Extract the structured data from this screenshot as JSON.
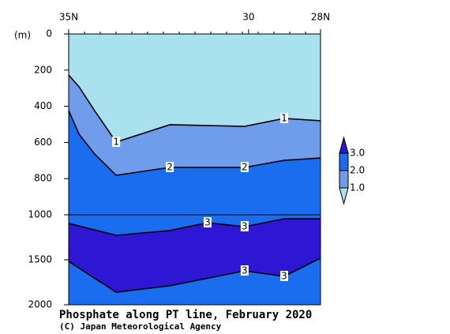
{
  "chart_data": {
    "type": "contour",
    "title": "Phosphate along PT line, February 2020",
    "credit": "(C) Japan Meteorological Agency",
    "ylabel": "(m)",
    "xlim": [
      35,
      28
    ],
    "xticks": [
      {
        "value": 35,
        "label": "35N"
      },
      30,
      {
        "value": 28,
        "label": "28N"
      }
    ],
    "ylim": [
      0,
      2000
    ],
    "scale_break": 1000,
    "yticks": [
      0,
      200,
      400,
      600,
      800,
      1000,
      1500,
      2000
    ],
    "colors": [
      "#a9e1ee",
      "#6f9deb",
      "#1b6df0",
      "#2d17d5"
    ],
    "levels": [
      {
        "value": 1,
        "label": "1.0"
      },
      {
        "value": 2,
        "label": "2.0"
      },
      {
        "value": 3,
        "label": "3.0"
      }
    ],
    "contours": [
      {
        "level": 1,
        "lat": [
          35,
          34.71,
          34.28,
          33.68,
          32.19,
          30.11,
          29.01,
          28
        ],
        "depth": [
          227,
          293,
          424,
          598,
          502,
          511,
          467,
          480
        ]
      },
      {
        "level": 2,
        "lat": [
          35,
          34.71,
          34.28,
          33.68,
          32.19,
          30.11,
          29.01,
          28
        ],
        "depth": [
          424,
          555,
          664,
          782,
          738,
          738,
          699,
          686
        ]
      },
      {
        "level": 3,
        "lat": [
          35,
          33.68,
          32.19,
          31.14,
          30.11,
          29.01,
          28
        ],
        "depth": [
          1096,
          1228,
          1175,
          1088,
          1132,
          1044,
          1044
        ]
      },
      {
        "level": 3,
        "lat": [
          35,
          33.68,
          32.19,
          30.11,
          29.01,
          28
        ],
        "depth": [
          1518,
          1860,
          1789,
          1623,
          1684,
          1482
        ]
      }
    ]
  }
}
